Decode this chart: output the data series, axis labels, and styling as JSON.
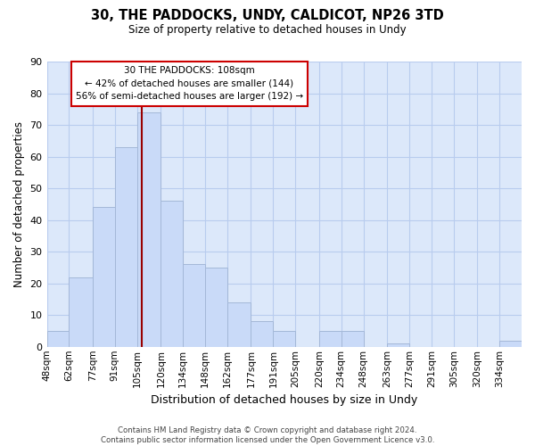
{
  "title": "30, THE PADDOCKS, UNDY, CALDICOT, NP26 3TD",
  "subtitle": "Size of property relative to detached houses in Undy",
  "xlabel": "Distribution of detached houses by size in Undy",
  "ylabel": "Number of detached properties",
  "bar_labels": [
    "48sqm",
    "62sqm",
    "77sqm",
    "91sqm",
    "105sqm",
    "120sqm",
    "134sqm",
    "148sqm",
    "162sqm",
    "177sqm",
    "191sqm",
    "205sqm",
    "220sqm",
    "234sqm",
    "248sqm",
    "263sqm",
    "277sqm",
    "291sqm",
    "305sqm",
    "320sqm",
    "334sqm"
  ],
  "bar_values": [
    5,
    22,
    44,
    63,
    74,
    46,
    26,
    25,
    14,
    8,
    5,
    0,
    5,
    5,
    0,
    1,
    0,
    0,
    0,
    0,
    2
  ],
  "bar_color": "#c9daf8",
  "bar_edge_color": "#a4b8d8",
  "property_line_x": 108,
  "property_line_label": "30 THE PADDOCKS: 108sqm",
  "annotation_line1": "← 42% of detached houses are smaller (144)",
  "annotation_line2": "56% of semi-detached houses are larger (192) →",
  "annotation_box_color": "#ffffff",
  "annotation_box_edge_color": "#cc0000",
  "line_color": "#990000",
  "ylim": [
    0,
    90
  ],
  "yticks": [
    0,
    10,
    20,
    30,
    40,
    50,
    60,
    70,
    80,
    90
  ],
  "grid_color": "#b8ccee",
  "background_color": "#dce8fa",
  "footer_text": "Contains HM Land Registry data © Crown copyright and database right 2024.\nContains public sector information licensed under the Open Government Licence v3.0.",
  "bin_edges": [
    48,
    62,
    77,
    91,
    105,
    120,
    134,
    148,
    162,
    177,
    191,
    205,
    220,
    234,
    248,
    263,
    277,
    291,
    305,
    320,
    334,
    348
  ]
}
